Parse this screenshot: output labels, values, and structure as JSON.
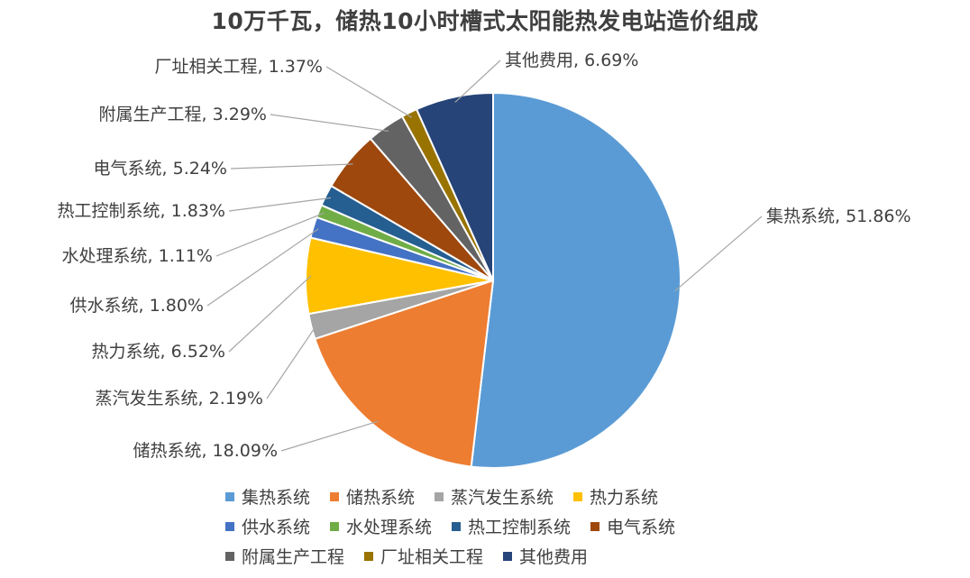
{
  "chart_data": {
    "type": "pie",
    "title": "10万千瓦，储热10小时槽式太阳能热发电站造价组成",
    "slices": [
      {
        "name": "集热系统",
        "value": 51.86,
        "label": "集热系统, 51.86%",
        "color": "#5b9bd5"
      },
      {
        "name": "储热系统",
        "value": 18.09,
        "label": "储热系统, 18.09%",
        "color": "#ed7d31"
      },
      {
        "name": "蒸汽发生系统",
        "value": 2.19,
        "label": "蒸汽发生系统, 2.19%",
        "color": "#a5a5a5"
      },
      {
        "name": "热力系统",
        "value": 6.52,
        "label": "热力系统, 6.52%",
        "color": "#ffc000"
      },
      {
        "name": "供水系统",
        "value": 1.8,
        "label": "供水系统, 1.80%",
        "color": "#4472c4"
      },
      {
        "name": "水处理系统",
        "value": 1.11,
        "label": "水处理系统, 1.11%",
        "color": "#70ad47"
      },
      {
        "name": "热工控制系统",
        "value": 1.83,
        "label": "热工控制系统, 1.83%",
        "color": "#255e91"
      },
      {
        "name": "电气系统",
        "value": 5.24,
        "label": "电气系统, 5.24%",
        "color": "#9e480e"
      },
      {
        "name": "附属生产工程",
        "value": 3.29,
        "label": "附属生产工程, 3.29%",
        "color": "#636363"
      },
      {
        "name": "厂址相关工程",
        "value": 1.37,
        "label": "厂址相关工程, 1.37%",
        "color": "#997300"
      },
      {
        "name": "其他费用",
        "value": 6.69,
        "label": "其他费用, 6.69%",
        "color": "#264478"
      }
    ],
    "legend_position": "bottom"
  }
}
